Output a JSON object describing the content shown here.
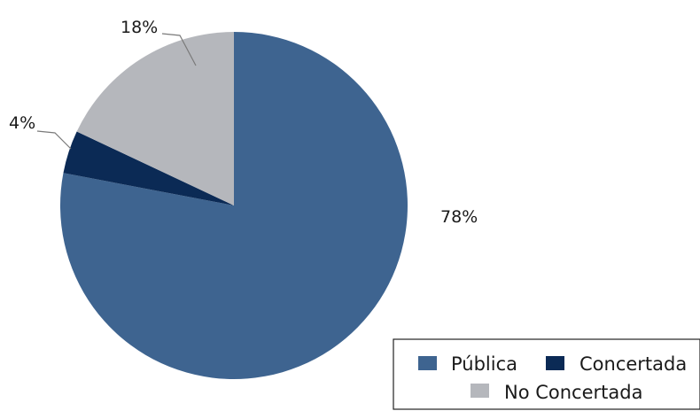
{
  "chart_data": {
    "type": "pie",
    "slices": [
      {
        "label": "Pública",
        "value": 78,
        "display": "78%",
        "color": "#3e6490"
      },
      {
        "label": "Concertada",
        "value": 4,
        "display": "4%",
        "color": "#0b2a55"
      },
      {
        "label": "No Concertada",
        "value": 18,
        "display": "18%",
        "color": "#b5b7bc"
      }
    ],
    "start": "12 o'clock",
    "direction": "clockwise",
    "legend": {
      "position": "bottom-right",
      "entries": [
        "Pública",
        "Concertada",
        "No Concertada"
      ]
    }
  }
}
